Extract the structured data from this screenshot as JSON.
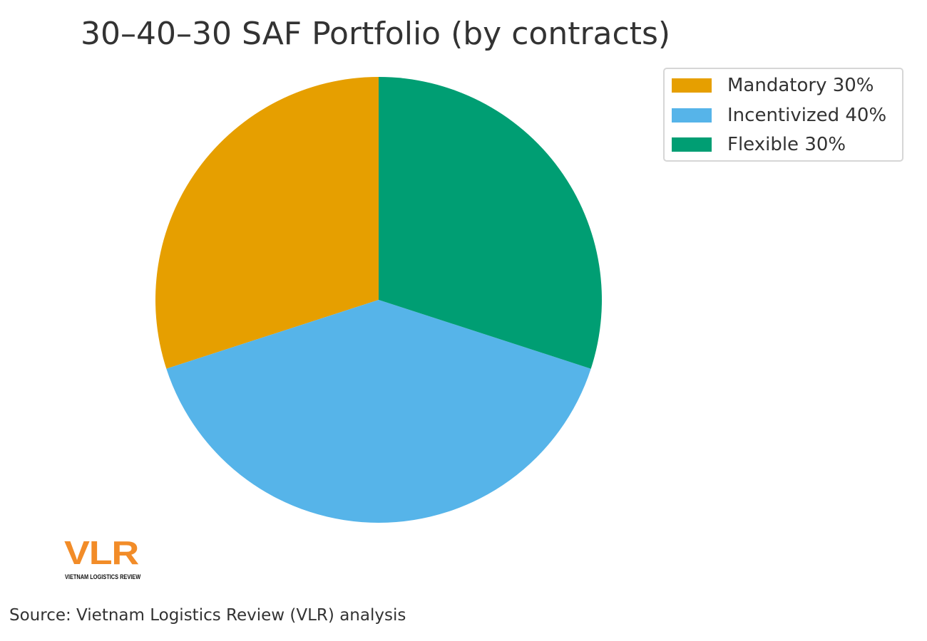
{
  "chart_data": {
    "type": "pie",
    "title": "30–40–30 SAF Portfolio (by contracts)",
    "start_angle_deg": 90,
    "direction": "counterclockwise",
    "slices": [
      {
        "label": "Mandatory 30%",
        "value": 30,
        "color": "#E69F00"
      },
      {
        "label": "Incentivized 40%",
        "value": 40,
        "color": "#56B4E9"
      },
      {
        "label": "Flexible 30%",
        "value": 30,
        "color": "#009E73"
      }
    ],
    "legend_position": "top-right"
  },
  "logo": {
    "text": "VLR",
    "subtext": "VIETNAM LOGISTICS REVIEW",
    "color": "#F28C28"
  },
  "source": "Source: Vietnam Logistics Review (VLR) analysis"
}
